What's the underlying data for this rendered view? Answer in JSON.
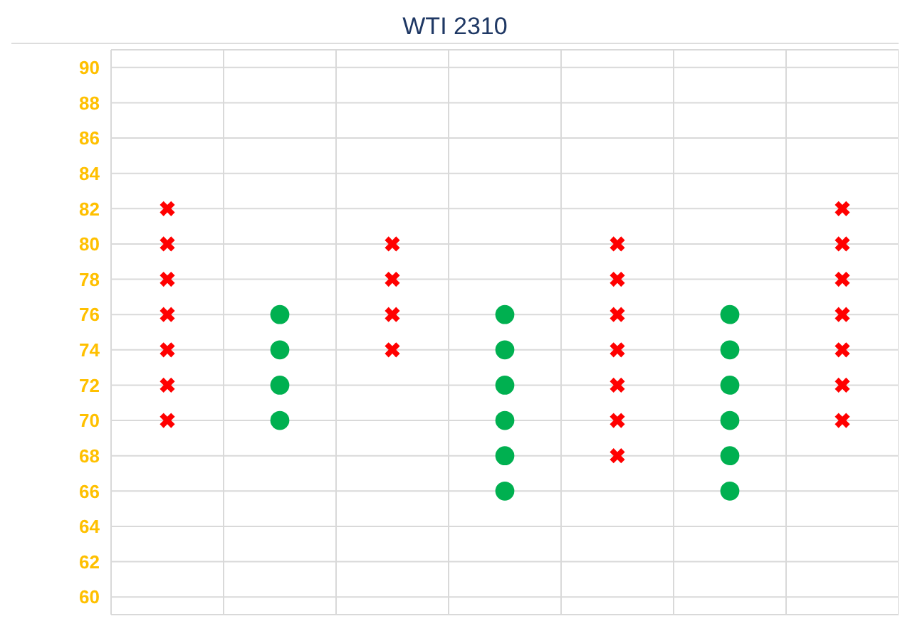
{
  "chart_data": {
    "type": "scatter",
    "title": "WTI 2310",
    "categories": [
      null,
      null,
      null,
      null,
      null,
      null,
      null
    ],
    "ylim": [
      59,
      91
    ],
    "yticks": [
      60,
      62,
      64,
      66,
      68,
      70,
      72,
      74,
      76,
      78,
      80,
      82,
      84,
      86,
      88,
      90
    ],
    "tick_labels": "y",
    "grid": true,
    "legend": false,
    "series": [
      {
        "color": "#ff0000",
        "marker": "cross",
        "values": [
          82,
          null,
          null,
          null,
          null,
          null,
          82
        ]
      },
      {
        "color": "#ff0000",
        "marker": "cross",
        "values": [
          80,
          null,
          80,
          null,
          80,
          null,
          80
        ]
      },
      {
        "color": "#ff0000",
        "marker": "cross",
        "values": [
          78,
          null,
          78,
          null,
          78,
          null,
          78
        ]
      },
      {
        "color": "#ff0000",
        "marker": "cross",
        "values": [
          76,
          null,
          76,
          null,
          76,
          null,
          76
        ]
      },
      {
        "color": "#ff0000",
        "marker": "cross",
        "values": [
          74,
          null,
          74,
          null,
          74,
          null,
          74
        ]
      },
      {
        "color": "#ff0000",
        "marker": "cross",
        "values": [
          72,
          null,
          null,
          null,
          72,
          null,
          72
        ]
      },
      {
        "color": "#ff0000",
        "marker": "cross",
        "values": [
          70,
          null,
          null,
          null,
          70,
          null,
          70
        ]
      },
      {
        "color": "#ff0000",
        "marker": "cross",
        "values": [
          null,
          null,
          null,
          null,
          68,
          null,
          null
        ]
      },
      {
        "color": "#00b050",
        "marker": "circle",
        "values": [
          null,
          76,
          null,
          76,
          null,
          76,
          null
        ]
      },
      {
        "color": "#00b050",
        "marker": "circle",
        "values": [
          null,
          74,
          null,
          74,
          null,
          74,
          null
        ]
      },
      {
        "color": "#00b050",
        "marker": "circle",
        "values": [
          null,
          72,
          null,
          72,
          null,
          72,
          null
        ]
      },
      {
        "color": "#00b050",
        "marker": "circle",
        "values": [
          null,
          70,
          null,
          70,
          null,
          70,
          null
        ]
      },
      {
        "color": "#00b050",
        "marker": "circle",
        "values": [
          null,
          null,
          null,
          68,
          null,
          68,
          null
        ]
      },
      {
        "color": "#00b050",
        "marker": "circle",
        "values": [
          null,
          null,
          null,
          66,
          null,
          66,
          null
        ]
      }
    ]
  }
}
